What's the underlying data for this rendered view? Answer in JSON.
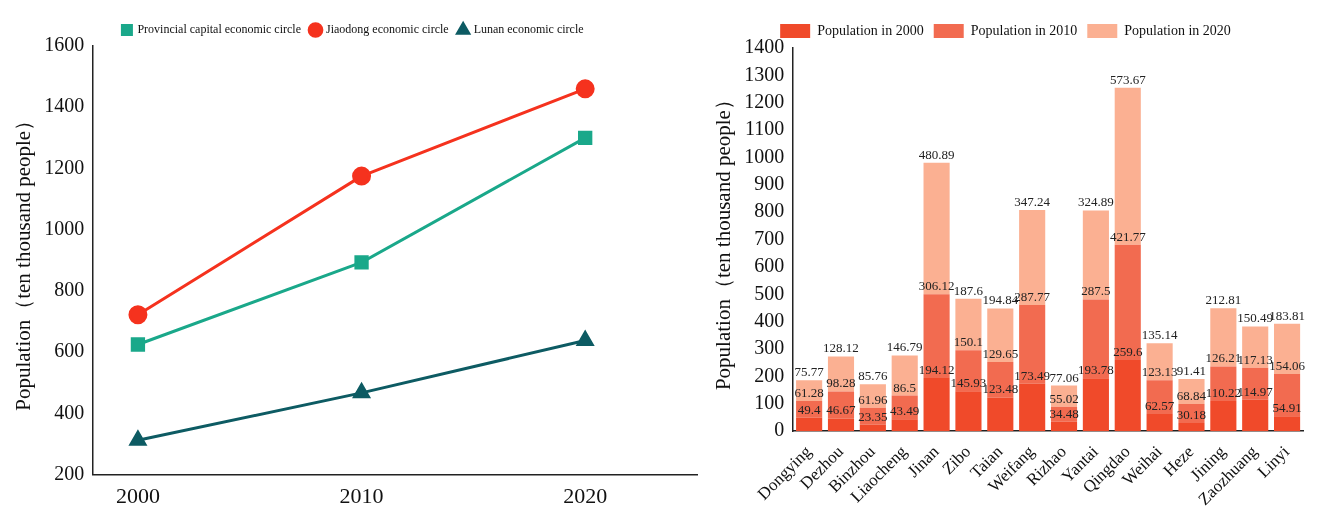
{
  "chart_data": [
    {
      "type": "line",
      "ylabel": "Population（ten thousand people）",
      "x": [
        2000,
        2010,
        2020
      ],
      "xlim": [
        1998,
        2025
      ],
      "xticks": [
        2000,
        2010,
        2020
      ],
      "ylim": [
        200,
        1600
      ],
      "yticks": [
        200,
        400,
        600,
        800,
        1000,
        1200,
        1400,
        1600
      ],
      "grid": false,
      "legend": "top",
      "line_style": "solid",
      "series": [
        {
          "name": "Provincial capital economic circle",
          "color": "#1aa88a",
          "marker": "square",
          "values": [
            625,
            893,
            1300
          ]
        },
        {
          "name": "Jiaodong economic circle",
          "color": "#f5321e",
          "marker": "circle",
          "values": [
            722,
            1175,
            1460
          ]
        },
        {
          "name": "Lunan economic circle",
          "color": "#0d5b63",
          "marker": "triangle",
          "values": [
            312,
            467,
            638
          ]
        }
      ]
    },
    {
      "type": "bar",
      "stacked": true,
      "data_labels": true,
      "ylabel": "Population（ten thousand people）",
      "ylim": [
        0,
        1400
      ],
      "yticks": [
        0,
        100,
        200,
        300,
        400,
        500,
        600,
        700,
        800,
        900,
        1000,
        1100,
        1200,
        1300,
        1400
      ],
      "grid": false,
      "legend": "top",
      "categories": [
        "Dongying",
        "Dezhou",
        "Binzhou",
        "Liaocheng",
        "Jinan",
        "Zibo",
        "Taian",
        "Weifang",
        "Rizhao",
        "Yantai",
        "Qingdao",
        "Weihai",
        "Heze",
        "Jining",
        "Zaozhuang",
        "Linyi"
      ],
      "series": [
        {
          "name": "Population in 2000",
          "color": "#f04a2a",
          "values": [
            49.4,
            46.67,
            23.35,
            43.49,
            194.12,
            145.93,
            123.48,
            173.49,
            34.48,
            193.78,
            259.6,
            62.57,
            30.18,
            110.22,
            114.97,
            54.91
          ]
        },
        {
          "name": "Population in 2010",
          "color": "#f26b50",
          "values": [
            61.28,
            98.28,
            61.96,
            86.5,
            306.12,
            150.1,
            129.65,
            287.77,
            55.02,
            287.5,
            421.77,
            123.13,
            68.84,
            126.21,
            117.13,
            154.06
          ]
        },
        {
          "name": "Population in 2020",
          "color": "#fbb092",
          "values": [
            75.77,
            128.12,
            85.76,
            146.79,
            480.89,
            187.6,
            194.84,
            347.24,
            77.06,
            324.89,
            573.67,
            135.14,
            91.41,
            212.81,
            150.49,
            183.81
          ]
        }
      ]
    }
  ]
}
